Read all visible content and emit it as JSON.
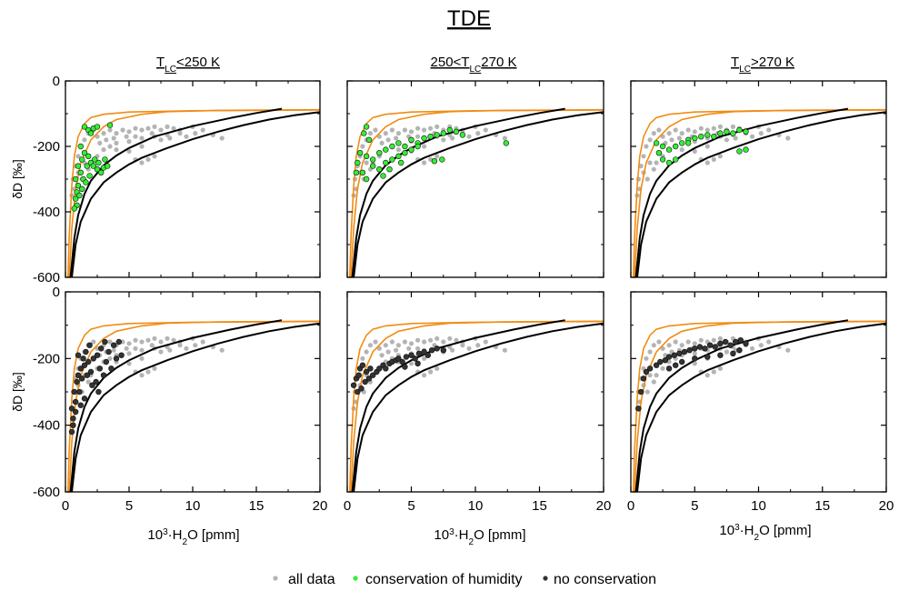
{
  "figure": {
    "title": "TDE",
    "legend": {
      "all_data": "all data",
      "conservation": "conservation of humidity",
      "no_conservation": "no conservation"
    },
    "column_titles": [
      {
        "pre": "T",
        "sub": "LC",
        "post": "<250 K"
      },
      {
        "pre": "250<T",
        "sub": "LC",
        "post": "270 K"
      },
      {
        "pre": "T",
        "sub": "LC",
        "post": ">270 K"
      }
    ],
    "ylabel": {
      "delta": "δD [‰]"
    },
    "xlabel": {
      "pre": "10",
      "sup": "3",
      "mid": "·H",
      "sub": "2",
      "post": "O [pmm]"
    }
  },
  "colors": {
    "all_data": "#b4b4b4",
    "conservation": "#33ee33",
    "no_conservation": "#333333",
    "orange_curve": "#f08c14",
    "black_curve": "#000000"
  },
  "chart_data": {
    "type": "scatter",
    "title": "TDE",
    "xlabel": "10^3·H2O [pmm]",
    "ylabel": "δD [‰]",
    "xlim": [
      0,
      20
    ],
    "ylim": [
      -600,
      0
    ],
    "xticks": [
      0,
      5,
      10,
      15,
      20
    ],
    "yticks": [
      0,
      -200,
      -400,
      -600
    ],
    "grid": false,
    "legend_position": "bottom-center",
    "layout": "2 rows x 3 columns",
    "reference_curves": {
      "orange_1": [
        [
          0.2,
          -600
        ],
        [
          0.3,
          -470
        ],
        [
          0.5,
          -320
        ],
        [
          0.7,
          -230
        ],
        [
          1,
          -170
        ],
        [
          1.5,
          -130
        ],
        [
          2,
          -112
        ],
        [
          3,
          -102
        ],
        [
          5,
          -95
        ],
        [
          10,
          -91
        ],
        [
          20,
          -89
        ]
      ],
      "orange_2": [
        [
          0.3,
          -600
        ],
        [
          0.5,
          -450
        ],
        [
          0.8,
          -330
        ],
        [
          1.2,
          -250
        ],
        [
          2,
          -180
        ],
        [
          3,
          -140
        ],
        [
          4,
          -118
        ],
        [
          6,
          -102
        ],
        [
          8,
          -94
        ],
        [
          12,
          -90
        ],
        [
          20,
          -88
        ]
      ],
      "black_1": [
        [
          0.4,
          -600
        ],
        [
          0.7,
          -480
        ],
        [
          1,
          -410
        ],
        [
          1.5,
          -345
        ],
        [
          2,
          -305
        ],
        [
          3,
          -258
        ],
        [
          4,
          -228
        ],
        [
          5,
          -205
        ],
        [
          7,
          -170
        ],
        [
          10,
          -138
        ],
        [
          13,
          -113
        ],
        [
          15,
          -98
        ],
        [
          17,
          -85
        ]
      ],
      "black_2": [
        [
          0.5,
          -600
        ],
        [
          0.8,
          -500
        ],
        [
          1.2,
          -430
        ],
        [
          2,
          -360
        ],
        [
          3,
          -310
        ],
        [
          4,
          -280
        ],
        [
          5,
          -255
        ],
        [
          6,
          -235
        ],
        [
          8,
          -205
        ],
        [
          10,
          -178
        ],
        [
          12,
          -155
        ],
        [
          14,
          -135
        ],
        [
          16,
          -118
        ],
        [
          18,
          -105
        ],
        [
          20,
          -95
        ]
      ]
    },
    "all_data_cloud": [
      [
        0.5,
        -350
      ],
      [
        0.6,
        -300
      ],
      [
        0.8,
        -260
      ],
      [
        1.0,
        -230
      ],
      [
        1.2,
        -200
      ],
      [
        1.5,
        -180
      ],
      [
        1.8,
        -160
      ],
      [
        2.2,
        -150
      ],
      [
        2.5,
        -170
      ],
      [
        3,
        -160
      ],
      [
        3.5,
        -150
      ],
      [
        4,
        -160
      ],
      [
        4.5,
        -150
      ],
      [
        5,
        -155
      ],
      [
        5.5,
        -145
      ],
      [
        6,
        -150
      ],
      [
        6.5,
        -145
      ],
      [
        7,
        -140
      ],
      [
        7.5,
        -150
      ],
      [
        8,
        -140
      ],
      [
        8.5,
        -145
      ],
      [
        9,
        -150
      ],
      [
        10,
        -140
      ],
      [
        12.3,
        -175
      ],
      [
        11.6,
        -165
      ],
      [
        2,
        -250
      ],
      [
        2.5,
        -230
      ],
      [
        3,
        -210
      ],
      [
        3.5,
        -200
      ],
      [
        4,
        -190
      ],
      [
        5,
        -185
      ],
      [
        6,
        -175
      ],
      [
        7,
        -170
      ],
      [
        8,
        -165
      ],
      [
        9,
        -160
      ],
      [
        1,
        -280
      ],
      [
        1.5,
        -250
      ],
      [
        4,
        -210
      ],
      [
        5,
        -215
      ],
      [
        6,
        -200
      ],
      [
        2.7,
        -190
      ],
      [
        3.2,
        -180
      ],
      [
        4.8,
        -170
      ],
      [
        7.5,
        -180
      ],
      [
        8.2,
        -175
      ],
      [
        0.7,
        -330
      ],
      [
        1.3,
        -300
      ],
      [
        1.8,
        -270
      ],
      [
        3.8,
        -175
      ],
      [
        5.5,
        -170
      ],
      [
        6.8,
        -160
      ],
      [
        9.5,
        -170
      ],
      [
        10.2,
        -160
      ],
      [
        10.8,
        -150
      ],
      [
        6,
        -250
      ],
      [
        6.5,
        -240
      ],
      [
        7,
        -230
      ],
      [
        5.5,
        -240
      ]
    ],
    "series": [
      {
        "name": "conservation of humidity",
        "panels": [
          [
            [
              1.5,
              -140
            ],
            [
              1.8,
              -150
            ],
            [
              2.0,
              -160
            ],
            [
              2.2,
              -145
            ],
            [
              2.5,
              -140
            ],
            [
              3.5,
              -135
            ],
            [
              1.2,
              -200
            ],
            [
              1.5,
              -220
            ],
            [
              1.8,
              -230
            ],
            [
              2.0,
              -250
            ],
            [
              2.2,
              -260
            ],
            [
              2.5,
              -270
            ],
            [
              2.8,
              -280
            ],
            [
              3.0,
              -265
            ],
            [
              3.3,
              -260
            ],
            [
              1.0,
              -260
            ],
            [
              1.2,
              -280
            ],
            [
              1.4,
              -300
            ],
            [
              1.0,
              -320
            ],
            [
              0.9,
              -340
            ],
            [
              0.8,
              -360
            ],
            [
              0.9,
              -380
            ],
            [
              0.7,
              -390
            ],
            [
              1.1,
              -350
            ],
            [
              1.3,
              -330
            ],
            [
              1.6,
              -310
            ],
            [
              1.9,
              -290
            ],
            [
              2.3,
              -240
            ],
            [
              2.6,
              -250
            ],
            [
              3.1,
              -240
            ],
            [
              1.3,
              -240
            ],
            [
              1.7,
              -260
            ],
            [
              0.8,
              -300
            ]
          ],
          [
            [
              1.0,
              -220
            ],
            [
              1.5,
              -230
            ],
            [
              2.0,
              -240
            ],
            [
              2.5,
              -220
            ],
            [
              3.0,
              -210
            ],
            [
              3.5,
              -200
            ],
            [
              4.0,
              -190
            ],
            [
              4.5,
              -200
            ],
            [
              5.0,
              -180
            ],
            [
              5.5,
              -190
            ],
            [
              6.0,
              -175
            ],
            [
              6.5,
              -170
            ],
            [
              7.0,
              -165
            ],
            [
              7.5,
              -160
            ],
            [
              8.0,
              -150
            ],
            [
              8.5,
              -155
            ],
            [
              9.0,
              -165
            ],
            [
              12.4,
              -190
            ],
            [
              2.0,
              -260
            ],
            [
              2.5,
              -270
            ],
            [
              3.0,
              -250
            ],
            [
              3.5,
              -240
            ],
            [
              4.0,
              -230
            ],
            [
              4.5,
              -220
            ],
            [
              5.0,
              -210
            ],
            [
              5.5,
              -200
            ],
            [
              1.2,
              -280
            ],
            [
              1.5,
              -300
            ],
            [
              2.8,
              -290
            ],
            [
              3.3,
              -270
            ],
            [
              4.2,
              -250
            ],
            [
              6.8,
              -245
            ],
            [
              7.4,
              -240
            ],
            [
              1.5,
              -140
            ],
            [
              1.3,
              -160
            ],
            [
              1.7,
              -180
            ],
            [
              0.8,
              -250
            ],
            [
              0.7,
              -280
            ]
          ],
          [
            [
              2.0,
              -190
            ],
            [
              2.5,
              -200
            ],
            [
              3.0,
              -210
            ],
            [
              3.5,
              -200
            ],
            [
              4.0,
              -190
            ],
            [
              4.5,
              -180
            ],
            [
              5.0,
              -175
            ],
            [
              5.5,
              -170
            ],
            [
              6.0,
              -165
            ],
            [
              6.5,
              -170
            ],
            [
              7.0,
              -160
            ],
            [
              7.5,
              -155
            ],
            [
              8.0,
              -160
            ],
            [
              8.5,
              -150
            ],
            [
              9.0,
              -155
            ],
            [
              9.0,
              -210
            ],
            [
              8.5,
              -215
            ],
            [
              2.5,
              -240
            ],
            [
              3.0,
              -250
            ],
            [
              3.5,
              -240
            ],
            [
              2.2,
              -220
            ],
            [
              4.5,
              -190
            ]
          ]
        ]
      },
      {
        "name": "no conservation",
        "panels": [
          [
            [
              0.5,
              -350
            ],
            [
              0.6,
              -380
            ],
            [
              0.7,
              -300
            ],
            [
              0.8,
              -330
            ],
            [
              0.9,
              -270
            ],
            [
              1.0,
              -250
            ],
            [
              1.1,
              -300
            ],
            [
              1.2,
              -230
            ],
            [
              1.3,
              -260
            ],
            [
              1.4,
              -200
            ],
            [
              1.5,
              -220
            ],
            [
              1.6,
              -180
            ],
            [
              1.7,
              -250
            ],
            [
              1.8,
              -210
            ],
            [
              1.9,
              -160
            ],
            [
              2.0,
              -240
            ],
            [
              2.2,
              -200
            ],
            [
              2.4,
              -270
            ],
            [
              2.5,
              -190
            ],
            [
              2.7,
              -230
            ],
            [
              2.8,
              -170
            ],
            [
              3.0,
              -250
            ],
            [
              3.2,
              -210
            ],
            [
              3.4,
              -180
            ],
            [
              3.6,
              -230
            ],
            [
              3.8,
              -160
            ],
            [
              4.0,
              -200
            ],
            [
              4.2,
              -150
            ],
            [
              4.4,
              -190
            ],
            [
              0.5,
              -420
            ],
            [
              0.6,
              -400
            ],
            [
              0.8,
              -360
            ],
            [
              1.2,
              -340
            ],
            [
              1.5,
              -320
            ],
            [
              2.1,
              -280
            ],
            [
              2.6,
              -300
            ],
            [
              3.1,
              -150
            ],
            [
              1.0,
              -190
            ]
          ],
          [
            [
              0.5,
              -280
            ],
            [
              0.7,
              -260
            ],
            [
              0.9,
              -250
            ],
            [
              1.0,
              -230
            ],
            [
              1.2,
              -220
            ],
            [
              1.5,
              -240
            ],
            [
              1.8,
              -230
            ],
            [
              2.0,
              -250
            ],
            [
              2.3,
              -240
            ],
            [
              2.5,
              -230
            ],
            [
              2.8,
              -220
            ],
            [
              3.0,
              -230
            ],
            [
              3.3,
              -215
            ],
            [
              3.5,
              -210
            ],
            [
              3.8,
              -205
            ],
            [
              4.0,
              -200
            ],
            [
              4.3,
              -210
            ],
            [
              4.6,
              -195
            ],
            [
              5.0,
              -190
            ],
            [
              5.3,
              -200
            ],
            [
              5.6,
              -185
            ],
            [
              6.0,
              -180
            ],
            [
              6.3,
              -190
            ],
            [
              6.6,
              -175
            ],
            [
              7.0,
              -170
            ],
            [
              7.5,
              -175
            ],
            [
              0.8,
              -300
            ],
            [
              1.1,
              -290
            ],
            [
              1.4,
              -270
            ],
            [
              1.7,
              -260
            ],
            [
              4.5,
              -225
            ],
            [
              5.5,
              -215
            ]
          ],
          [
            [
              0.6,
              -350
            ],
            [
              0.8,
              -300
            ],
            [
              1.0,
              -260
            ],
            [
              1.2,
              -240
            ],
            [
              1.5,
              -230
            ],
            [
              2.0,
              -220
            ],
            [
              2.3,
              -210
            ],
            [
              2.7,
              -205
            ],
            [
              3.0,
              -195
            ],
            [
              3.4,
              -190
            ],
            [
              3.8,
              -185
            ],
            [
              4.2,
              -180
            ],
            [
              4.6,
              -175
            ],
            [
              5.0,
              -170
            ],
            [
              5.4,
              -165
            ],
            [
              5.8,
              -170
            ],
            [
              6.2,
              -160
            ],
            [
              6.6,
              -165
            ],
            [
              7.0,
              -155
            ],
            [
              7.4,
              -150
            ],
            [
              7.8,
              -160
            ],
            [
              8.2,
              -150
            ],
            [
              8.6,
              -145
            ],
            [
              9.0,
              -155
            ],
            [
              4.0,
              -210
            ],
            [
              5.0,
              -200
            ],
            [
              6.0,
              -195
            ],
            [
              7.0,
              -190
            ],
            [
              8.0,
              -185
            ],
            [
              8.5,
              -175
            ],
            [
              3.0,
              -230
            ],
            [
              3.5,
              -220
            ]
          ]
        ]
      }
    ]
  }
}
